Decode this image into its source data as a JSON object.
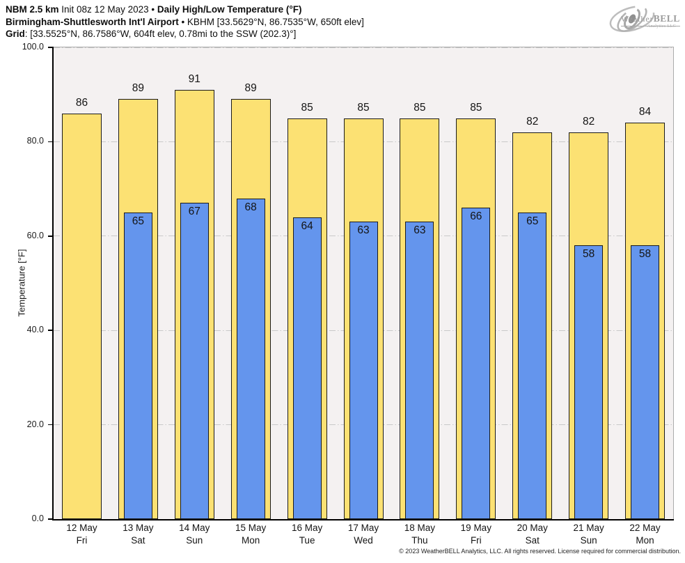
{
  "header": {
    "l1a": "NBM 2.5 km",
    "l1b": " Init 08z 12 May 2023 • ",
    "l1c": "Daily High/Low Temperature (°F)",
    "l2a": "Birmingham-Shuttlesworth Int'l Airport",
    "l2b": " • KBHM [33.5629°N, 86.7535°W, 650ft elev]",
    "l3a": "Grid",
    "l3b": ": [33.5525°N, 86.7586°W, 604ft elev, 0.78mi to the SSW (202.3)°]"
  },
  "logo": {
    "brand_prefix": "Weather",
    "brand_suffix": "BELL",
    "subtext": "Analytics LLC"
  },
  "chart_data": {
    "type": "bar",
    "title": "Daily High/Low Temperature (°F)",
    "model": "NBM 2.5 km",
    "init": "Init 08z 12 May 2023",
    "station": "KBHM Birmingham-Shuttlesworth Int'l Airport",
    "ylabel": "Temperature [°F]",
    "ylim": [
      0,
      100
    ],
    "ytick_values": [
      0,
      20,
      40,
      60,
      80,
      100
    ],
    "ytick_labels": [
      "0.0",
      "20.0",
      "40.0",
      "60.0",
      "80.0",
      "100.0"
    ],
    "grid": {
      "horizontal": true,
      "style": "dash-dot",
      "at": [
        20,
        40,
        60,
        80,
        100
      ]
    },
    "legend": "none (values labeled on bars)",
    "categories": [
      {
        "date": "12 May",
        "day": "Fri"
      },
      {
        "date": "13 May",
        "day": "Sat"
      },
      {
        "date": "14 May",
        "day": "Sun"
      },
      {
        "date": "15 May",
        "day": "Mon"
      },
      {
        "date": "16 May",
        "day": "Tue"
      },
      {
        "date": "17 May",
        "day": "Wed"
      },
      {
        "date": "18 May",
        "day": "Thu"
      },
      {
        "date": "19 May",
        "day": "Fri"
      },
      {
        "date": "20 May",
        "day": "Sat"
      },
      {
        "date": "21 May",
        "day": "Sun"
      },
      {
        "date": "22 May",
        "day": "Mon"
      }
    ],
    "series": [
      {
        "name": "High",
        "color": "#FCE173",
        "values": [
          86,
          89,
          91,
          89,
          85,
          85,
          85,
          85,
          82,
          82,
          84
        ]
      },
      {
        "name": "Low",
        "color": "#6495ED",
        "values": [
          null,
          65,
          67,
          68,
          64,
          63,
          63,
          66,
          65,
          58,
          58
        ]
      }
    ]
  },
  "footer": {
    "copyright": "© 2023 WeatherBELL Analytics, LLC. All rights reserved. License required for commercial distribution."
  },
  "colors": {
    "plot_bg": "#f4f1f1",
    "axis": "#000000",
    "frame": "#ababab",
    "grid": "#c9c9c9",
    "high_bar": "#FCE173",
    "low_bar": "#6495ED",
    "bar_border": "#1a1a1a"
  }
}
